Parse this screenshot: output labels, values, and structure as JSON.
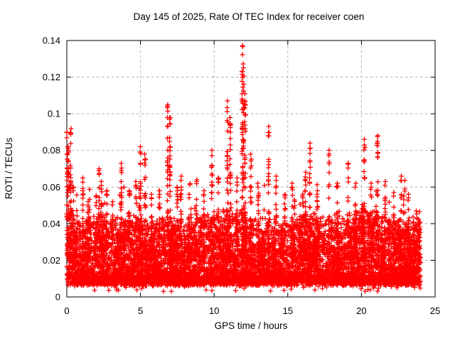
{
  "chart_data": {
    "type": "scatter",
    "title": "Day 145 of 2025, Rate Of TEC Index for receiver coen",
    "xlabel": "GPS time / hours",
    "ylabel": "ROTI / TECUs",
    "xlim": [
      0,
      25
    ],
    "ylim": [
      0,
      0.14
    ],
    "xticks": [
      0,
      5,
      10,
      15,
      20,
      25
    ],
    "xtick_labels": [
      "0",
      "5",
      "10",
      "15",
      "20",
      "25"
    ],
    "yticks": [
      0,
      0.02,
      0.04,
      0.06,
      0.08,
      0.1,
      0.12,
      0.14
    ],
    "ytick_labels": [
      "0",
      "0.02",
      "0.04",
      "0.06",
      "0.08",
      "0.1",
      "0.12",
      "0.14"
    ],
    "grid": {
      "visible": true,
      "style": "dashed"
    },
    "legend": {
      "visible": false
    },
    "marker": {
      "shape": "plus",
      "size": 7,
      "color": "#ff0000"
    },
    "colors": {
      "points": "#ff0000",
      "grid": "#b1b1b1",
      "axis": "#000000",
      "background": "#ffffff"
    },
    "data_span_hours": [
      0,
      24
    ],
    "band": {
      "description": "dense noise band of ROTI values; solid from ~0.008 to ~0.03, tapering to ~0.05",
      "floor": 0.006,
      "core_top": 0.03,
      "hourly_cap": [
        0.05,
        0.04,
        0.048,
        0.044,
        0.042,
        0.046,
        0.042,
        0.044,
        0.042,
        0.048,
        0.046,
        0.048,
        0.046,
        0.044,
        0.042,
        0.042,
        0.046,
        0.046,
        0.044,
        0.046,
        0.048,
        0.048,
        0.044,
        0.042
      ]
    },
    "notable_peaks": [
      {
        "hour": 0.03,
        "roti": 0.09
      },
      {
        "hour": 0.1,
        "roti": 0.082
      },
      {
        "hour": 0.25,
        "roti": 0.092
      },
      {
        "hour": 0.45,
        "roti": 0.06
      },
      {
        "hour": 1.1,
        "roti": 0.065
      },
      {
        "hour": 1.45,
        "roti": 0.052
      },
      {
        "hour": 2.2,
        "roti": 0.07
      },
      {
        "hour": 2.35,
        "roti": 0.063
      },
      {
        "hour": 2.7,
        "roti": 0.058
      },
      {
        "hour": 3.1,
        "roti": 0.052
      },
      {
        "hour": 3.7,
        "roti": 0.073
      },
      {
        "hour": 4.25,
        "roti": 0.058
      },
      {
        "hour": 4.7,
        "roti": 0.063
      },
      {
        "hour": 5.0,
        "roti": 0.082
      },
      {
        "hour": 5.3,
        "roti": 0.078
      },
      {
        "hour": 5.75,
        "roti": 0.056
      },
      {
        "hour": 6.3,
        "roti": 0.058
      },
      {
        "hour": 6.85,
        "roti": 0.105
      },
      {
        "hour": 7.0,
        "roti": 0.098
      },
      {
        "hour": 7.5,
        "roti": 0.06
      },
      {
        "hour": 7.75,
        "roti": 0.066
      },
      {
        "hour": 8.3,
        "roti": 0.056
      },
      {
        "hour": 8.8,
        "roti": 0.064
      },
      {
        "hour": 9.3,
        "roti": 0.058
      },
      {
        "hour": 9.85,
        "roti": 0.08
      },
      {
        "hour": 10.3,
        "roti": 0.065
      },
      {
        "hour": 10.9,
        "roti": 0.107
      },
      {
        "hour": 11.1,
        "roti": 0.098
      },
      {
        "hour": 11.55,
        "roti": 0.065
      },
      {
        "hour": 11.92,
        "roti": 0.137
      },
      {
        "hour": 12.0,
        "roti": 0.125
      },
      {
        "hour": 12.1,
        "roti": 0.111
      },
      {
        "hour": 12.5,
        "roti": 0.078
      },
      {
        "hour": 13.0,
        "roti": 0.062
      },
      {
        "hour": 13.7,
        "roti": 0.093
      },
      {
        "hour": 14.2,
        "roti": 0.066
      },
      {
        "hour": 14.8,
        "roti": 0.056
      },
      {
        "hour": 15.3,
        "roti": 0.062
      },
      {
        "hour": 16.0,
        "roti": 0.056
      },
      {
        "hour": 16.2,
        "roti": 0.068
      },
      {
        "hour": 16.5,
        "roti": 0.084
      },
      {
        "hour": 17.0,
        "roti": 0.058
      },
      {
        "hour": 17.8,
        "roti": 0.08
      },
      {
        "hour": 18.35,
        "roti": 0.062
      },
      {
        "hour": 19.1,
        "roti": 0.073
      },
      {
        "hour": 19.6,
        "roti": 0.062
      },
      {
        "hour": 20.2,
        "roti": 0.086
      },
      {
        "hour": 20.65,
        "roti": 0.062
      },
      {
        "hour": 21.1,
        "roti": 0.088
      },
      {
        "hour": 21.6,
        "roti": 0.063
      },
      {
        "hour": 22.2,
        "roti": 0.057
      },
      {
        "hour": 22.7,
        "roti": 0.066
      },
      {
        "hour": 23.2,
        "roti": 0.056
      },
      {
        "hour": 23.75,
        "roti": 0.047
      }
    ],
    "render": {
      "seed": 145,
      "band_points": 7200,
      "grass_columns": 130,
      "low_outliers": 55,
      "spike_points_per_unit": 300
    }
  }
}
